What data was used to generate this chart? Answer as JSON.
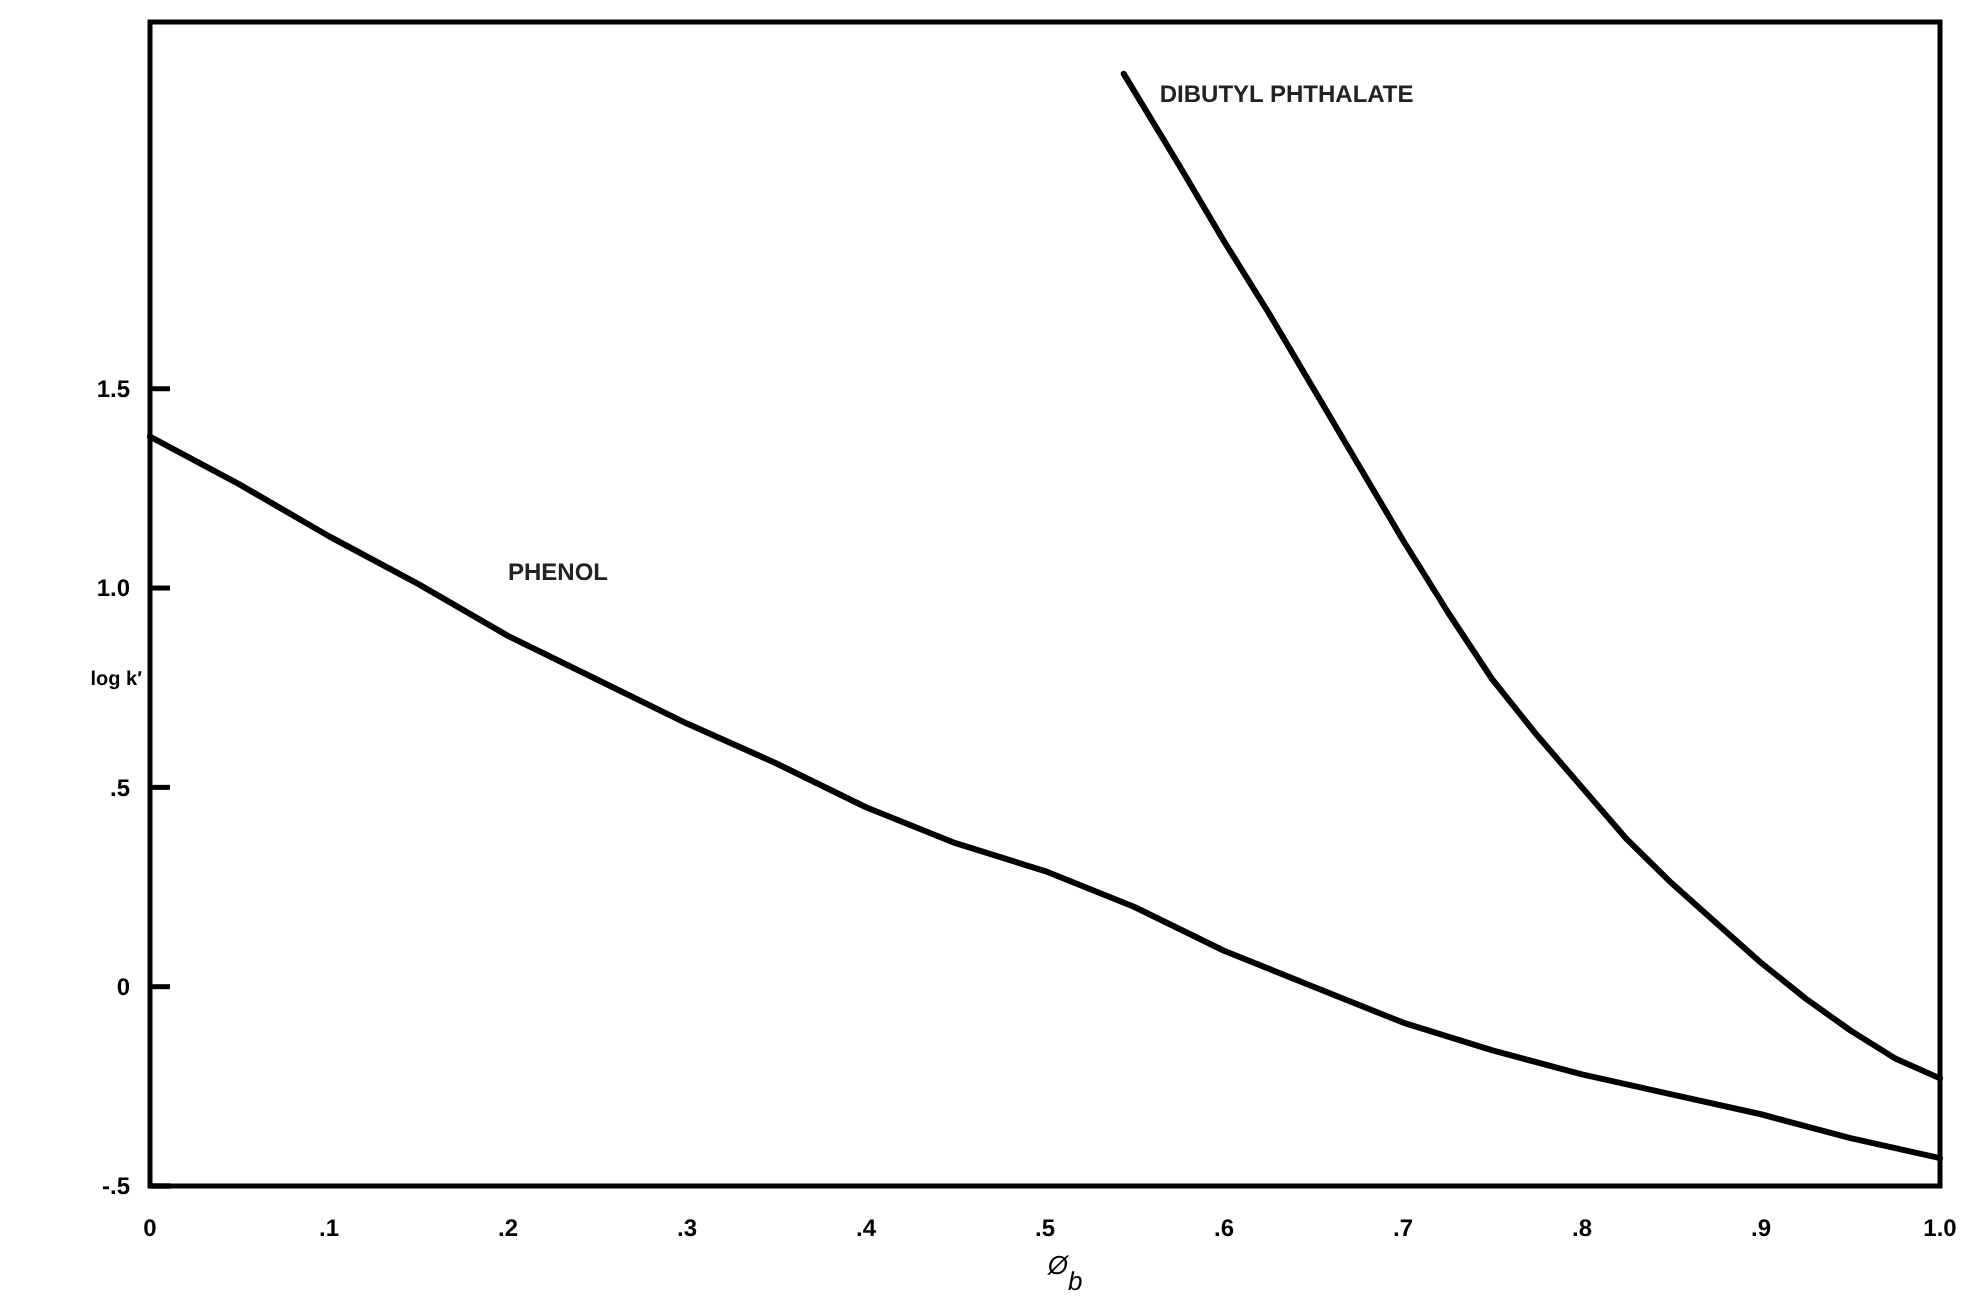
{
  "chart_data": {
    "type": "line",
    "xlabel": "Ø$_{b}$",
    "ylabel": "log k′",
    "xlim": [
      0,
      1.0
    ],
    "ylim": [
      -0.5,
      2.42
    ],
    "xticks": [
      0,
      {
        "value": 0.1,
        "label": ".1"
      },
      {
        "value": 0.2,
        "label": ".2"
      },
      {
        "value": 0.3,
        "label": ".3"
      },
      {
        "value": 0.4,
        "label": ".4"
      },
      {
        "value": 0.5,
        "label": ".5"
      },
      {
        "value": 0.6,
        "label": ".6"
      },
      {
        "value": 0.7,
        "label": ".7"
      },
      {
        "value": 0.8,
        "label": ".8"
      },
      {
        "value": 0.9,
        "label": ".9"
      },
      {
        "value": 1.0,
        "label": "1.0"
      }
    ],
    "yticks": [
      {
        "value": -0.5,
        "label": "-.5"
      },
      0,
      {
        "value": 0.5,
        "label": ".5"
      },
      {
        "value": 1.0,
        "label": "1.0"
      },
      1.5
    ],
    "grid": false,
    "marker": "none",
    "line_style": "solid",
    "series": [
      {
        "name": "PHENOL",
        "color": "#000000",
        "x": [
          0,
          0.05,
          0.1,
          0.15,
          0.2,
          0.25,
          0.3,
          0.35,
          0.4,
          0.45,
          0.5,
          0.55,
          0.6,
          0.65,
          0.7,
          0.75,
          0.8,
          0.85,
          0.9,
          0.95,
          1.0
        ],
        "values": [
          1.38,
          1.26,
          1.13,
          1.01,
          0.88,
          0.77,
          0.66,
          0.56,
          0.45,
          0.36,
          0.29,
          0.2,
          0.09,
          0.0,
          -0.09,
          -0.16,
          -0.22,
          -0.27,
          -0.32,
          -0.38,
          -0.43
        ]
      },
      {
        "name": "DIBUTYL PHTHALATE",
        "color": "#000000",
        "x": [
          0.544,
          0.575,
          0.6,
          0.625,
          0.65,
          0.675,
          0.7,
          0.725,
          0.75,
          0.775,
          0.8,
          0.825,
          0.85,
          0.875,
          0.9,
          0.925,
          0.95,
          0.975,
          1.0
        ],
        "values": [
          2.29,
          2.06,
          1.87,
          1.69,
          1.5,
          1.31,
          1.12,
          0.94,
          0.77,
          0.63,
          0.5,
          0.37,
          0.26,
          0.16,
          0.06,
          -0.03,
          -0.11,
          -0.18,
          -0.23
        ]
      }
    ]
  }
}
